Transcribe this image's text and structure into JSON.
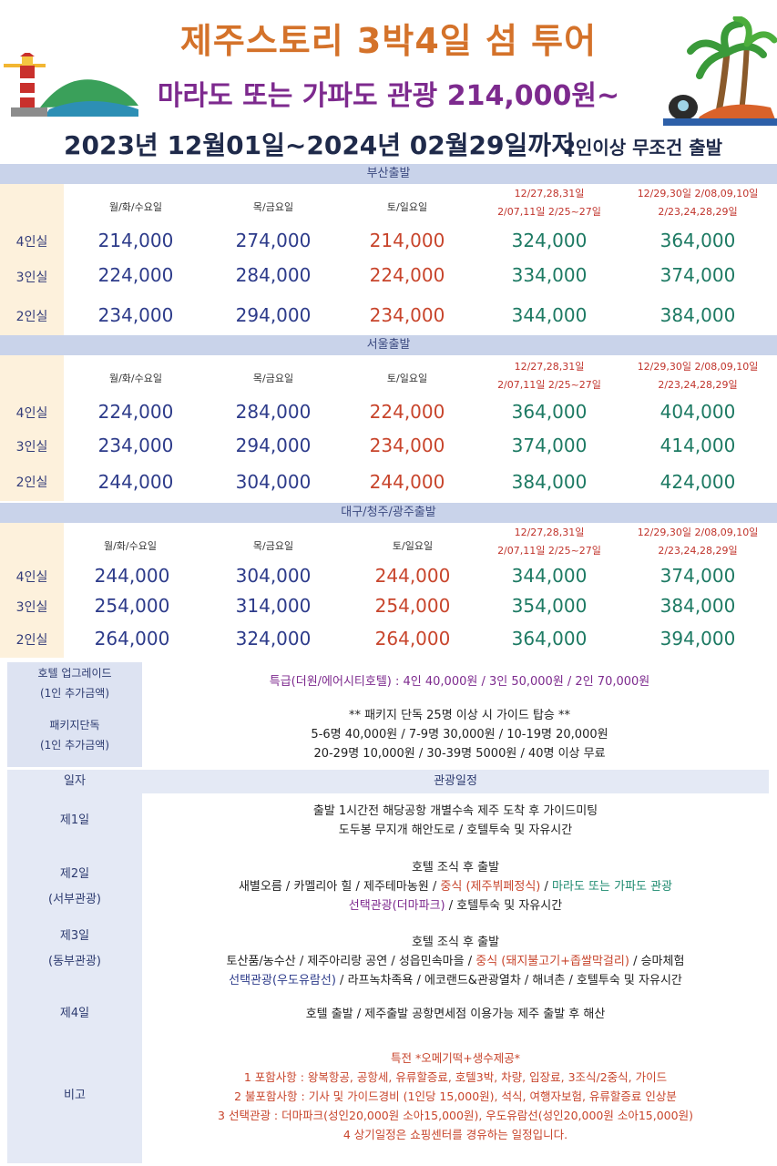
{
  "header": {
    "title": "제주스토리 3박4일 섬 투어",
    "subtitle": "마라도 또는 가파도 관광 214,000원~",
    "period": "2023년 12월01일~2024년 02월29일까지",
    "condition": "2인이상 무조건 출발"
  },
  "colors": {
    "accent_orange": "#d4722a",
    "accent_purple": "#7d2a8e",
    "navy": "#2d3b8a",
    "red": "#c8452c",
    "teal": "#1d7a63",
    "bar": "#c9d3ea",
    "left_col": "#fdf1dc"
  },
  "column_headers": {
    "weekday": "월/화/수요일",
    "thufri": "목/금요일",
    "weekend": "토/일요일",
    "special1_line1": "12/27,28,31일",
    "special1_line2": "2/07,11일  2/25~27일",
    "special2_line1": "12/29,30일  2/08,09,10일",
    "special2_line2": "2/23,24,28,29일"
  },
  "sections": [
    {
      "title": "부산출발",
      "rows": [
        {
          "room": "4인실",
          "prices": [
            "214,000",
            "274,000",
            "214,000",
            "324,000",
            "364,000"
          ]
        },
        {
          "room": "3인실",
          "prices": [
            "224,000",
            "284,000",
            "224,000",
            "334,000",
            "374,000"
          ]
        },
        {
          "room": "2인실",
          "prices": [
            "234,000",
            "294,000",
            "234,000",
            "344,000",
            "384,000"
          ]
        }
      ]
    },
    {
      "title": "서울출발",
      "rows": [
        {
          "room": "4인실",
          "prices": [
            "224,000",
            "284,000",
            "224,000",
            "364,000",
            "404,000"
          ]
        },
        {
          "room": "3인실",
          "prices": [
            "234,000",
            "294,000",
            "234,000",
            "374,000",
            "414,000"
          ]
        },
        {
          "room": "2인실",
          "prices": [
            "244,000",
            "304,000",
            "244,000",
            "384,000",
            "424,000"
          ]
        }
      ]
    },
    {
      "title": "대구/청주/광주출발",
      "rows": [
        {
          "room": "4인실",
          "prices": [
            "244,000",
            "304,000",
            "244,000",
            "344,000",
            "374,000"
          ]
        },
        {
          "room": "3인실",
          "prices": [
            "254,000",
            "314,000",
            "254,000",
            "354,000",
            "384,000"
          ]
        },
        {
          "room": "2인실",
          "prices": [
            "264,000",
            "324,000",
            "264,000",
            "364,000",
            "394,000"
          ]
        }
      ]
    }
  ],
  "upgrade": {
    "label1": "호텔 업그레이드",
    "label2": "(1인 추가금액)",
    "text": "특급(더원/에어시티호텔) : 4인 40,000원 / 3인 50,000원 / 2인 70,000원"
  },
  "package": {
    "label1": "패키지단독",
    "label2": "(1인 추가금액)",
    "line1": "** 패키지 단독 25명 이상 시 가이드 탑승 **",
    "line2": "5-6명 40,000원 / 7-9명 30,000원 / 10-19명 20,000원",
    "line3": "20-29명 10,000원 / 30-39명 5000원 / 40명 이상 무료"
  },
  "schedule": {
    "col_day": "일자",
    "col_plan": "관광일정",
    "day1": {
      "label": "제1일",
      "line1": "출발 1시간전 해당공항 개별수속 제주 도착 후 가이드미팅",
      "line2": "도두봉 무지개 해안도로 / 호텔투숙 및 자유시간"
    },
    "day2": {
      "label": "제2일",
      "sub": "(서부관광)",
      "line1": "호텔 조식 후 출발",
      "line2a": "새별오름 / 카멜리아 힐 / 제주테마농원 / ",
      "line2b": "중식 (제주뷔페정식)",
      "line2c": " / ",
      "line2d": "마라도 또는 가파도 관광",
      "line3a": "선택관광(더마파크)",
      "line3b": " / 호텔투숙 및 자유시간"
    },
    "day3": {
      "label": "제3일",
      "sub": "(동부관광)",
      "line1": "호텔 조식 후 출발",
      "line2a": "토산품/농수산 / 제주아리랑 공연 / 성읍민속마을 / ",
      "line2b": "중식 (돼지불고기+좁쌀막걸리)",
      "line2c": " / 승마체험",
      "line3a": "선택관광(우도유람선)",
      "line3b": " / 라프녹차족욕 / 에코랜드&관광열차 / 해녀촌 / 호텔투숙 및 자유시간"
    },
    "day4": {
      "label": "제4일",
      "line1": "호텔 출발 / 제주출발 공항면세점 이용가능 제주 출발 후 해산"
    },
    "note": {
      "label": "비고",
      "line1": "특전 *오메기떡+생수제공*",
      "line2": "1 포함사항 : 왕복항공, 공항세, 유류할증료, 호텔3박, 차량, 입장료, 3조식/2중식, 가이드",
      "line3": "2 불포함사항 : 기사 및 가이드경비 (1인당 15,000원), 석식, 여행자보험, 유류할증료 인상분",
      "line4": "3 선택관광 : 더마파크(성인20,000원 소아15,000원), 우도유람선(성인20,000원 소아15,000원)",
      "line5": "4 상기일정은 쇼핑센터를 경유하는 일정입니다."
    }
  }
}
